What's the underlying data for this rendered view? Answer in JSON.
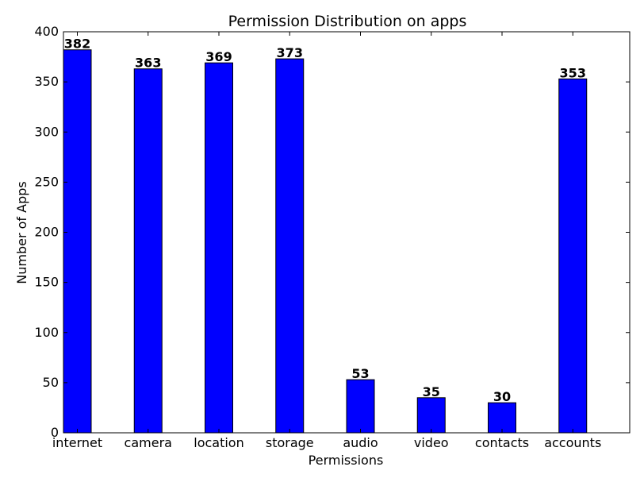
{
  "chart_data": {
    "type": "bar",
    "title": "Permission Distribution on apps",
    "xlabel": "Permissions",
    "ylabel": "Number of Apps",
    "categories": [
      "internet",
      "camera",
      "location",
      "storage",
      "audio",
      "video",
      "contacts",
      "accounts"
    ],
    "values": [
      382,
      363,
      369,
      373,
      53,
      35,
      30,
      353
    ],
    "ylim": [
      0,
      400
    ],
    "yticks": [
      0,
      50,
      100,
      150,
      200,
      250,
      300,
      350,
      400
    ],
    "grid": false,
    "legend": "none",
    "bar_color": "#0000ff",
    "edge_color": "#000000"
  }
}
